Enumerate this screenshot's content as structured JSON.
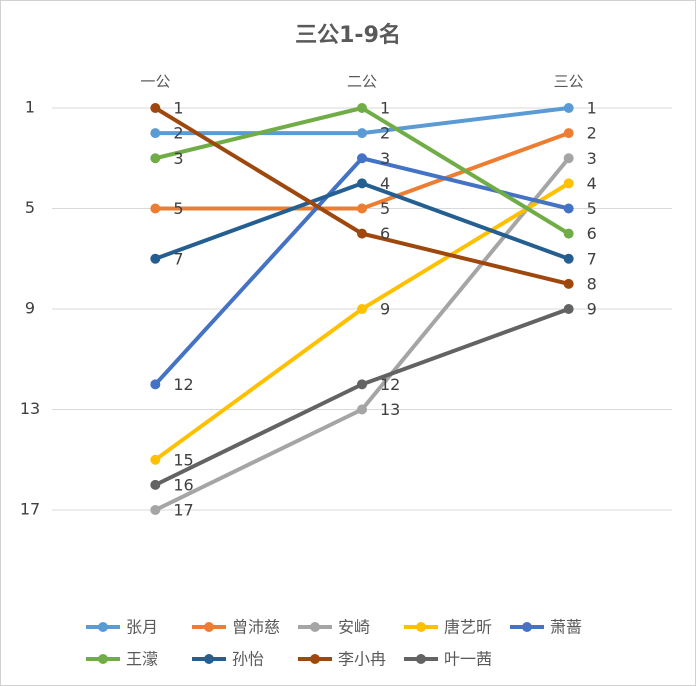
{
  "chart_data": {
    "type": "line",
    "title": "三公1-9名",
    "categories": [
      "一公",
      "二公",
      "三公"
    ],
    "series": [
      {
        "name": "张月",
        "color": "#5b9bd5",
        "values": [
          2,
          2,
          1
        ]
      },
      {
        "name": "曾沛慈",
        "color": "#ed7d31",
        "values": [
          5,
          5,
          2
        ]
      },
      {
        "name": "安崎",
        "color": "#a5a5a5",
        "values": [
          17,
          13,
          3
        ]
      },
      {
        "name": "唐艺昕",
        "color": "#ffc000",
        "values": [
          15,
          9,
          4
        ]
      },
      {
        "name": "萧蔷",
        "color": "#4472c4",
        "values": [
          12,
          3,
          5
        ]
      },
      {
        "name": "王濛",
        "color": "#70ad47",
        "values": [
          3,
          1,
          6
        ]
      },
      {
        "name": "孙怡",
        "color": "#255e91",
        "values": [
          7,
          4,
          7
        ]
      },
      {
        "name": "李小冉",
        "color": "#9e480e",
        "values": [
          1,
          6,
          8
        ]
      },
      {
        "name": "叶一茜",
        "color": "#636363",
        "values": [
          16,
          12,
          9
        ]
      }
    ],
    "ylim": [
      1,
      17
    ],
    "yticks": [
      1,
      5,
      9,
      13,
      17
    ],
    "y_reversed": true,
    "grid": true,
    "legend": "bottom"
  }
}
